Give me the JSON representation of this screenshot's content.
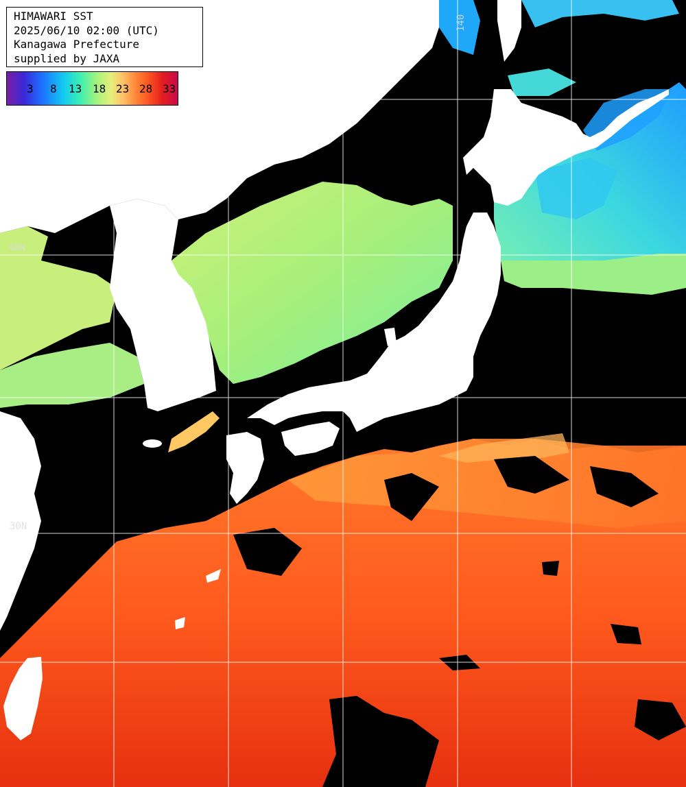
{
  "title": {
    "line1": "HIMAWARI SST",
    "line2": "2025/06/10 02:00 (UTC)",
    "line3": "Kanagawa Prefecture",
    "line4": "supplied by JAXA"
  },
  "colorbar": {
    "ticks": [
      "3",
      "8",
      "13",
      "18",
      "23",
      "28",
      "33"
    ]
  },
  "grid_labels": {
    "lon_140": "140",
    "lat_40": "40N",
    "lat_30": "30N"
  },
  "colors": {
    "land": "#ffffff",
    "cloud_mask": "#000000",
    "cold": "#1e9cff",
    "cool": "#3cf0c0",
    "mild": "#a6ef7a",
    "warm": "#ffb050",
    "hot": "#ff5a1e",
    "hottest": "#e62814",
    "grid": "#ffffff"
  }
}
